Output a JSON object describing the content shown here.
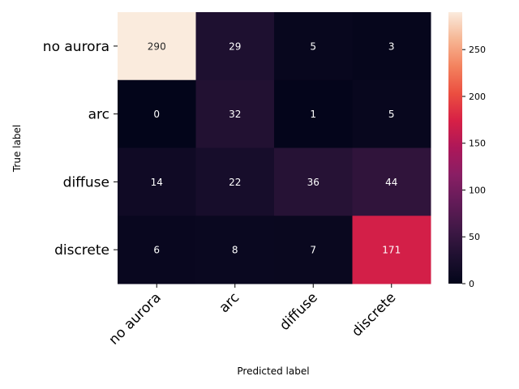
{
  "chart_data": {
    "type": "heatmap",
    "xlabel": "Predicted label",
    "ylabel": "True label",
    "x_categories": [
      "no aurora",
      "arc",
      "diffuse",
      "discrete"
    ],
    "y_categories": [
      "no aurora",
      "arc",
      "diffuse",
      "discrete"
    ],
    "values": [
      [
        290,
        29,
        5,
        3
      ],
      [
        0,
        32,
        1,
        5
      ],
      [
        14,
        22,
        36,
        44
      ],
      [
        6,
        8,
        7,
        171
      ]
    ],
    "colorbar": {
      "min": 0,
      "max": 290,
      "ticks": [
        0,
        50,
        100,
        150,
        200,
        250
      ],
      "colormap": "rocket"
    },
    "annotation_colors": {
      "on_dark": "#ffffff",
      "on_light": "#262626"
    }
  }
}
